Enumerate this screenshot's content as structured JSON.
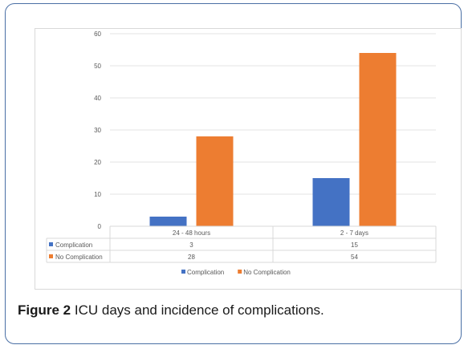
{
  "chart_data": {
    "type": "bar",
    "categories": [
      "24 - 48 hours",
      "2 - 7 days"
    ],
    "series": [
      {
        "name": "Complication",
        "values": [
          3,
          15
        ],
        "color": "#4472c4"
      },
      {
        "name": "No Complication",
        "values": [
          28,
          54
        ],
        "color": "#ed7d31"
      }
    ],
    "ylim": [
      0,
      60
    ],
    "yticks": [
      0,
      10,
      20,
      30,
      40,
      50,
      60
    ],
    "grid": true,
    "legend": "bottom",
    "data_table": true
  },
  "caption": {
    "label": "Figure 2",
    "text": "ICU days and incidence of complications."
  }
}
